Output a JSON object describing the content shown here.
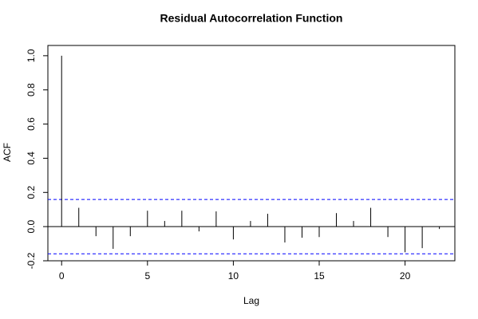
{
  "chart_data": {
    "type": "acf",
    "title": "Residual Autocorrelation Function",
    "x_label": "Lag",
    "y_label": "ACF",
    "x": [
      0,
      1,
      2,
      3,
      4,
      5,
      6,
      7,
      8,
      9,
      10,
      11,
      12,
      13,
      14,
      15,
      16,
      17,
      18,
      19,
      20,
      21,
      22
    ],
    "values": [
      1.0,
      0.11,
      -0.056,
      -0.13,
      -0.056,
      0.093,
      0.033,
      0.093,
      -0.028,
      0.089,
      -0.075,
      0.033,
      0.075,
      -0.093,
      -0.065,
      -0.061,
      0.079,
      0.033,
      0.11,
      -0.061,
      -0.15,
      -0.126,
      -0.014
    ],
    "color": "#000000",
    "conf_bounds": [
      0.159,
      -0.159
    ],
    "conf_color": "#0000ff",
    "xlim": [
      -0.8,
      22.9
    ],
    "ylim": [
      -0.2,
      1.06
    ],
    "xticks": [
      0,
      5,
      10,
      15,
      20
    ],
    "yticks": [
      -0.2,
      {
        "value": 0,
        "label": "0.0"
      },
      0.2,
      0.4,
      0.6,
      0.8,
      {
        "value": 1,
        "label": "1.0"
      }
    ]
  }
}
